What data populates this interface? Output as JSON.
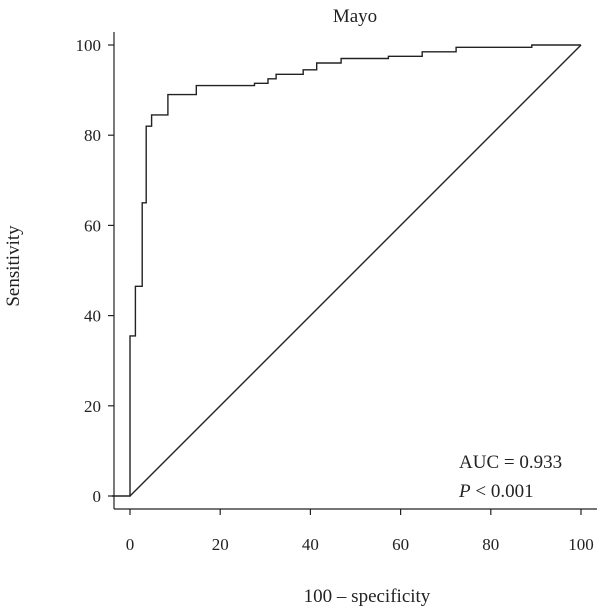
{
  "chart_data": {
    "type": "line",
    "title": "Mayo",
    "xlabel": "100 – specificity",
    "ylabel": "Sensitivity",
    "xlim": [
      0,
      100
    ],
    "ylim": [
      0,
      100
    ],
    "x_ticks": [
      0,
      20,
      40,
      60,
      80,
      100
    ],
    "y_ticks": [
      0,
      20,
      40,
      60,
      80,
      100
    ],
    "grid": false,
    "annotations": {
      "auc_label": "AUC = 0.933",
      "p_label_italic": "P",
      "p_label_rest": " < 0.001"
    },
    "series": [
      {
        "x": [
          -4,
          0,
          0,
          1.2,
          1.2,
          2.7,
          2.7,
          3.6,
          3.6,
          4.8,
          4.8,
          8.4,
          8.4,
          14.7,
          14.7,
          27.6,
          27.6,
          30.6,
          30.6,
          32.4,
          32.4,
          38.4,
          38.4,
          41.4,
          41.4,
          46.8,
          46.8,
          57.3,
          57.3,
          64.8,
          64.8,
          72.3,
          72.3,
          89.1,
          89.1,
          100
        ],
        "y": [
          0,
          0,
          35.5,
          35.5,
          46.5,
          46.5,
          65,
          65,
          82,
          82,
          84.5,
          84.5,
          89,
          89,
          91,
          91,
          91.5,
          91.5,
          92.5,
          92.5,
          93.5,
          93.5,
          94.5,
          94.5,
          96,
          96,
          97,
          97,
          97.5,
          97.5,
          98.5,
          98.5,
          99.5,
          99.5,
          100,
          100
        ]
      },
      {
        "x": [
          0,
          100
        ],
        "y": [
          0,
          100
        ]
      }
    ]
  }
}
